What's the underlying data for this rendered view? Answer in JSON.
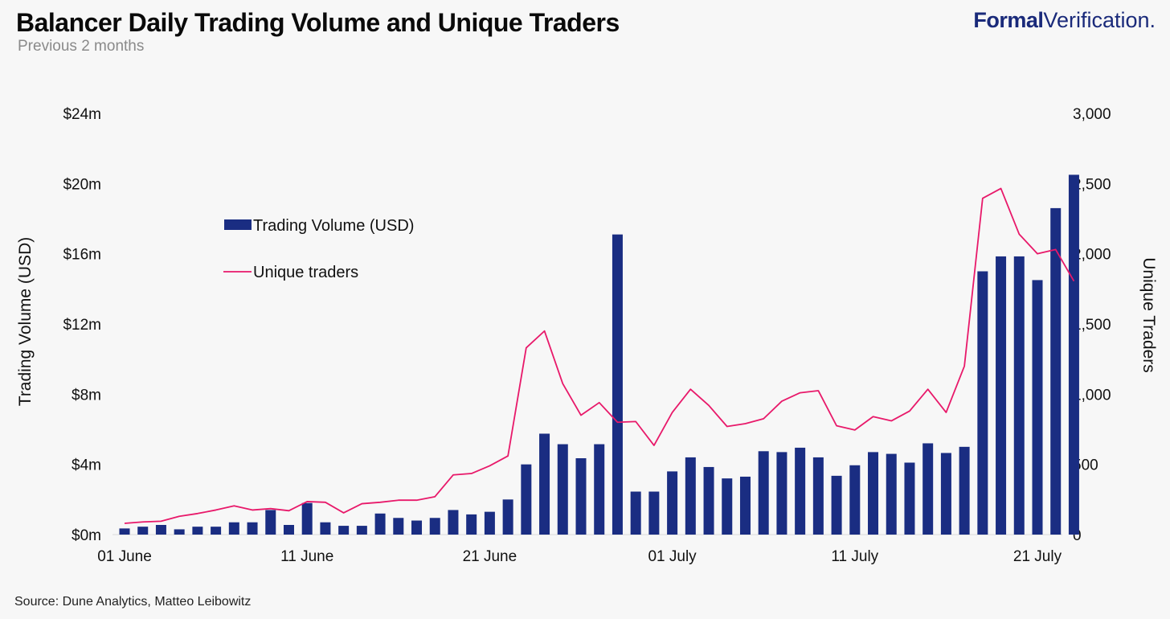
{
  "header": {
    "title": "Balancer Daily Trading Volume and Unique Traders",
    "subtitle": "Previous 2 months",
    "brand_bold": "Formal",
    "brand_light": "Verification."
  },
  "footer": {
    "source": "Source:  Dune Analytics, Matteo Leibowitz"
  },
  "colors": {
    "bars": "#1a2d82",
    "line": "#e8196a",
    "background": "#f7f7f7"
  },
  "chart_data": {
    "type": "bar",
    "title": "Balancer Daily Trading Volume and Unique Traders",
    "subtitle": "Previous 2 months",
    "ylabel_left": "Trading Volume (USD)",
    "ylabel_right": "Unique Traders",
    "ylim_left": [
      0,
      24
    ],
    "ylim_right": [
      0,
      3000
    ],
    "yticks_left": [
      "$0m",
      "$4m",
      "$8m",
      "$12m",
      "$16m",
      "$20m",
      "$24m"
    ],
    "yticks_right": [
      "0",
      "500",
      "1,000",
      "1,500",
      "2,000",
      "2,500",
      "3,000"
    ],
    "xtick_labels": [
      {
        "index": 0,
        "label": "01 June"
      },
      {
        "index": 10,
        "label": "11 June"
      },
      {
        "index": 20,
        "label": "21 June"
      },
      {
        "index": 30,
        "label": "01 July"
      },
      {
        "index": 40,
        "label": "11 July"
      },
      {
        "index": 50,
        "label": "21 July"
      }
    ],
    "legend": {
      "position": "upper-left",
      "bar_label": "Trading Volume (USD)",
      "line_label": "Unique traders"
    },
    "grid": false,
    "series": [
      {
        "name": "Trading Volume (USD)",
        "type": "bar",
        "axis": "left",
        "unit": "USD millions",
        "values": [
          0.35,
          0.45,
          0.55,
          0.3,
          0.45,
          0.45,
          0.7,
          0.7,
          1.4,
          0.55,
          1.8,
          0.7,
          0.5,
          0.5,
          1.2,
          0.95,
          0.8,
          0.95,
          1.4,
          1.15,
          1.3,
          2.0,
          4.0,
          5.75,
          5.15,
          4.35,
          5.15,
          17.1,
          2.45,
          2.45,
          3.6,
          4.4,
          3.85,
          3.2,
          3.3,
          4.75,
          4.7,
          4.95,
          4.4,
          3.35,
          3.95,
          4.7,
          4.6,
          4.1,
          5.2,
          4.65,
          5.0,
          15.0,
          15.85,
          15.85,
          14.5,
          18.6,
          20.5
        ]
      },
      {
        "name": "Unique traders",
        "type": "line",
        "axis": "right",
        "values": [
          80,
          90,
          95,
          130,
          150,
          175,
          205,
          175,
          185,
          170,
          235,
          230,
          155,
          220,
          230,
          245,
          245,
          270,
          425,
          435,
          490,
          560,
          1330,
          1450,
          1075,
          850,
          940,
          800,
          805,
          635,
          870,
          1035,
          920,
          770,
          790,
          825,
          950,
          1010,
          1025,
          775,
          745,
          840,
          810,
          880,
          1035,
          870,
          1200,
          2395,
          2465,
          2140,
          2000,
          2030,
          1805
        ]
      }
    ]
  }
}
